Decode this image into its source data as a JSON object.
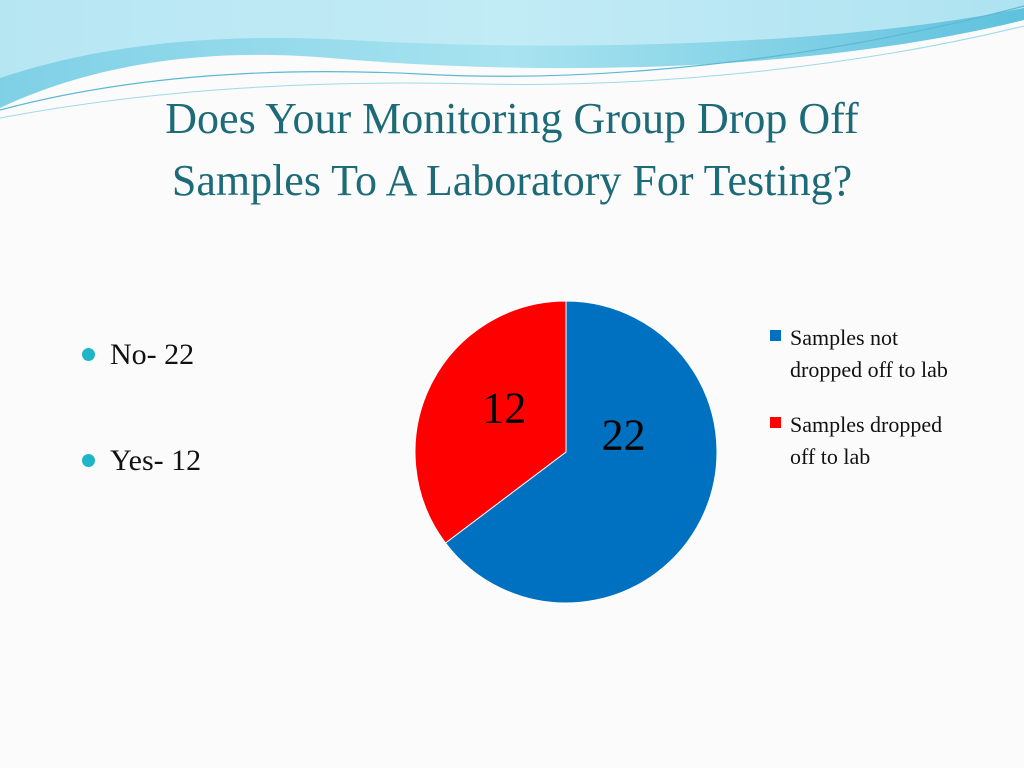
{
  "slide": {
    "title_line1": "Does Your Monitoring Group Drop Off",
    "title_line2": "Samples To A Laboratory For Testing?",
    "title_color": "#1d6a78",
    "bullet_color": "#1fb5c9"
  },
  "bullets": [
    {
      "text": "No- 22"
    },
    {
      "text": "Yes- 12"
    }
  ],
  "chart_data": {
    "type": "pie",
    "slices": [
      {
        "label": "Samples not dropped off to lab",
        "value": 22,
        "data_label": "22",
        "color": "#0070c0"
      },
      {
        "label": "Samples dropped off to lab",
        "value": 12,
        "data_label": "12",
        "color": "#ff0000"
      }
    ],
    "start": "12 o'clock, clockwise",
    "legend_position": "right"
  },
  "legend": [
    {
      "label": "Samples not dropped off to lab",
      "color": "#0070c0"
    },
    {
      "label": "Samples dropped off to lab",
      "color": "#ff0000"
    }
  ]
}
